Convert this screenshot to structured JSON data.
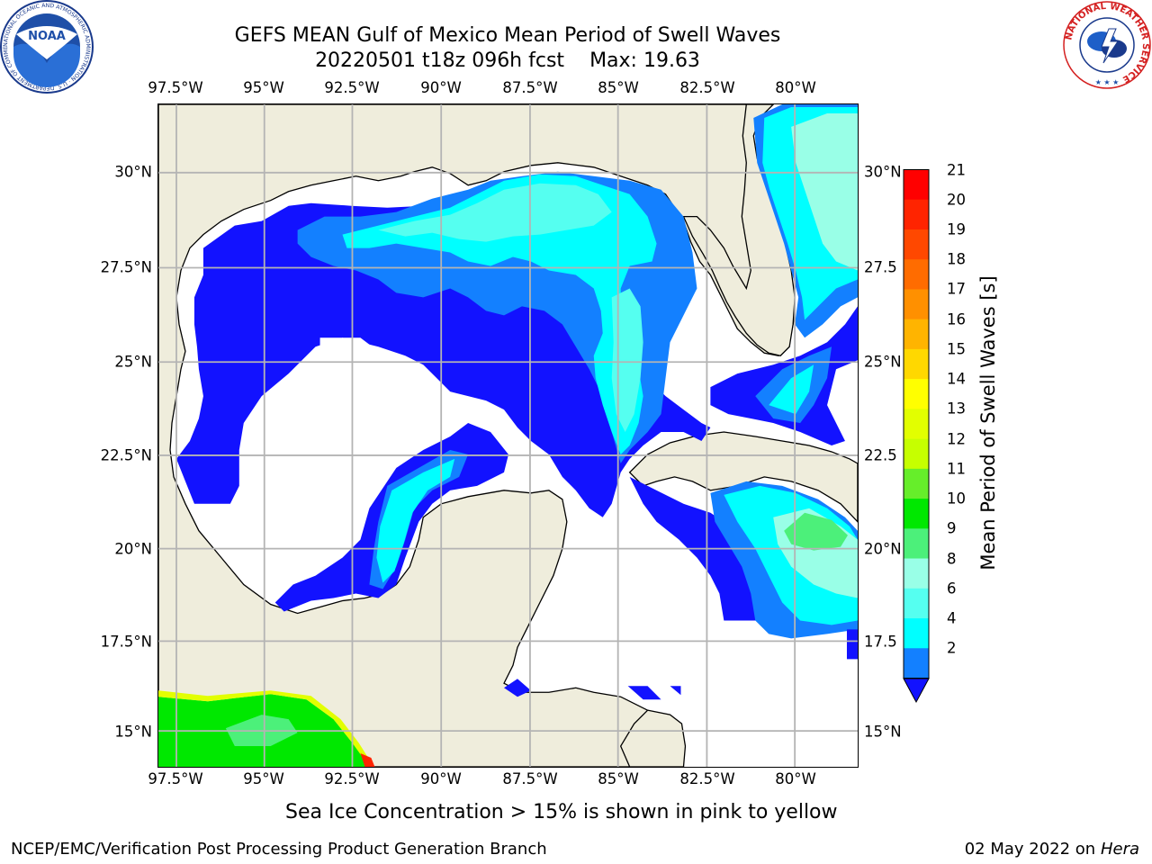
{
  "header": {
    "title_line1": "GEFS MEAN Gulf of Mexico Mean Period of Swell Waves",
    "title_line2_date": "20220501 t18z 096h fcst",
    "title_line2_max": "Max: 19.63"
  },
  "map": {
    "lon_labels": [
      "97.5°W",
      "95°W",
      "92.5°W",
      "90°W",
      "87.5°W",
      "85°W",
      "82.5°W",
      "80°W"
    ],
    "lat_labels_left": [
      "30°N",
      "27.5°N",
      "25°N",
      "22.5°N",
      "20°N",
      "17.5°N",
      "15°N"
    ],
    "lat_labels_right": [
      "30°N",
      "27.5",
      "25°N",
      "22.5",
      "20°N",
      "17.5",
      "15°N"
    ],
    "extent_lon": [
      -98.5,
      -78.8
    ],
    "extent_lat": [
      14.0,
      31.8
    ],
    "grid": true,
    "land_color": "#efeddc",
    "ocean_color": "#ffffff"
  },
  "colorbar": {
    "title": "Mean Period of Swell Waves [s]",
    "ticks": [
      "21",
      "20",
      "19",
      "18",
      "17",
      "16",
      "15",
      "14",
      "13",
      "12",
      "11",
      "10",
      "9",
      "8",
      "6",
      "4",
      "2"
    ],
    "extend": "min",
    "colors": [
      "#ff0000",
      "#ff2400",
      "#ff4800",
      "#ff6c00",
      "#ff9000",
      "#ffb400",
      "#ffd800",
      "#ffff00",
      "#e2ff00",
      "#c6ff00",
      "#66ee2a",
      "#00e800",
      "#4cf07a",
      "#99ffe7",
      "#55fff0",
      "#00ffff",
      "#1380ff"
    ],
    "below_color": "#1212ff"
  },
  "footer": {
    "ice_note": "Sea Ice Concentration > 15% is shown in pink to yellow",
    "left": "NCEP/EMC/Verification Post Processing Product Generation Branch",
    "date": "02 May 2022 on",
    "machine": "Hera"
  },
  "logos": {
    "noaa_text": "NOAA",
    "noaa_ring_text": "NATIONAL OCEANIC AND ATMOSPHERIC ADMINISTRATION · U.S. DEPARTMENT OF COMMERCE",
    "nws_ring_text": "NATIONAL WEATHER SERVICE"
  }
}
